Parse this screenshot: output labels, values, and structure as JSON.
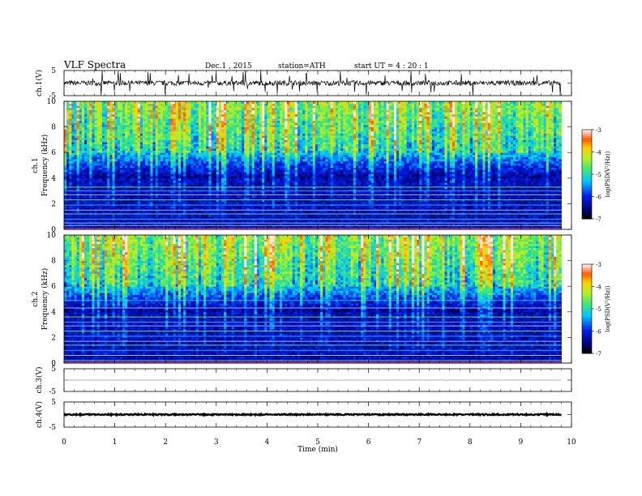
{
  "header": {
    "title": "VLF  Spectra",
    "date": "Dec.1 , 2015",
    "station": "station=ATH",
    "start": "start  UT  =    4 : 20 : 1"
  },
  "chart_data": [
    {
      "id": "ch1",
      "type": "line",
      "ylabel": "ch.1(V)",
      "ylim": [
        -5,
        5
      ],
      "ytick_labels": [
        "5",
        "-5"
      ],
      "xlim": [
        0,
        10
      ],
      "baseline": 0,
      "noise": 1,
      "spikes": 35,
      "color": "#000000"
    },
    {
      "id": "spec1",
      "type": "heatmap",
      "ylabel": "ch.1 Frequency (kHz)",
      "ylim": [
        0,
        10
      ],
      "yticks": [
        "0",
        "2",
        "4",
        "6",
        "8",
        "10"
      ],
      "xlim": [
        0,
        9.8
      ],
      "colorbar": {
        "label": "log(PSD(V²/Hz))",
        "range": [
          -7,
          -3
        ],
        "ticks": [
          "-3",
          "-4",
          "-5",
          "-6",
          "-7"
        ]
      },
      "strong_bands_khz": [
        0.3,
        0.5,
        0.8,
        1.2,
        1.5,
        1.9,
        2.3,
        2.7,
        3.0,
        3.3
      ]
    },
    {
      "id": "spec2",
      "type": "heatmap",
      "ylabel": "ch.2 Frequency (kHz)",
      "ylim": [
        0,
        10
      ],
      "yticks": [
        "0",
        "2",
        "4",
        "6",
        "8",
        "10"
      ],
      "xlim": [
        0,
        9.8
      ],
      "colorbar": {
        "label": "log(PSD(V²/Hz))",
        "range": [
          -7,
          -3
        ],
        "ticks": [
          "-3",
          "-4",
          "-5",
          "-6",
          "-7"
        ]
      },
      "strong_bands_khz": [
        0.2,
        0.6,
        1.0,
        1.4,
        1.7,
        2.1,
        2.5,
        2.9,
        3.2,
        3.6,
        4.3,
        4.9
      ]
    },
    {
      "id": "ch3",
      "type": "line",
      "ylabel": "ch.3(V)",
      "ylim": [
        -5,
        5
      ],
      "ytick_labels": [
        "5",
        "-5"
      ],
      "xlim": [
        0,
        10
      ],
      "baseline": 0,
      "noise": 0.05,
      "spikes": 0,
      "color": "#999999"
    },
    {
      "id": "ch4",
      "type": "line",
      "ylabel": "ch.4(V)",
      "ylim": [
        -5,
        5
      ],
      "ytick_labels": [
        "5",
        "-5"
      ],
      "xlim": [
        0,
        10
      ],
      "baseline": 0,
      "noise": 0.25,
      "spikes": 0,
      "color": "#000000"
    }
  ],
  "xaxis": {
    "label": "Time  (min)",
    "range": [
      0,
      10
    ],
    "ticks": [
      "0",
      "1",
      "2",
      "3",
      "4",
      "5",
      "6",
      "7",
      "8",
      "9",
      "10"
    ]
  }
}
